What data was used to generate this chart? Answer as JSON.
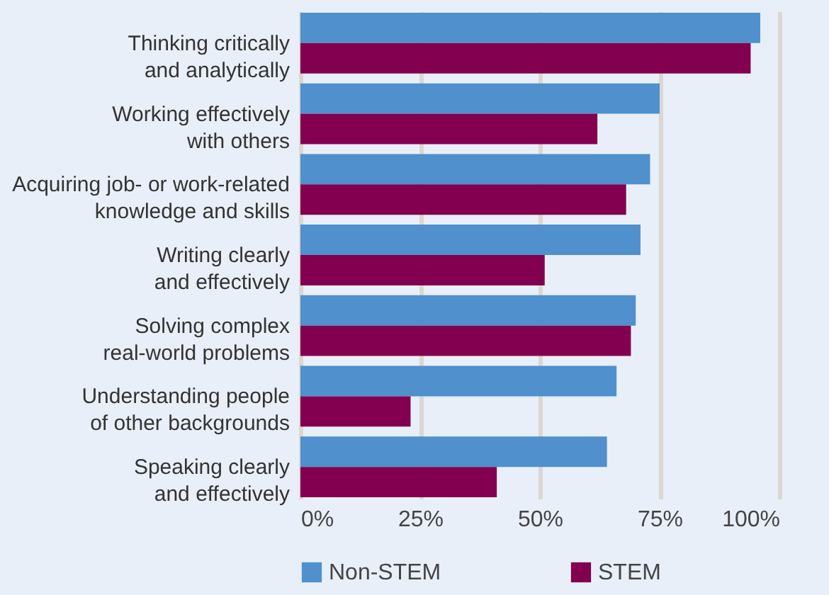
{
  "chart_data": {
    "type": "bar",
    "orientation": "horizontal",
    "categories": [
      "Thinking critically and analytically",
      "Working effectively with others",
      "Acquiring job- or work-related knowledge and skills",
      "Writing clearly and effectively",
      "Solving complex real-world problems",
      "Understanding people of other backgrounds",
      "Speaking clearly and effectively"
    ],
    "series": [
      {
        "name": "Non-STEM",
        "color": "#4f90cd",
        "values": [
          96,
          75,
          73,
          71,
          70,
          66,
          64
        ]
      },
      {
        "name": "STEM",
        "color": "#82004f",
        "values": [
          94,
          62,
          68,
          51,
          69,
          23,
          41
        ]
      }
    ],
    "xlim": [
      0,
      100
    ],
    "xticks": [
      {
        "value": 0,
        "label": "0%"
      },
      {
        "value": 25,
        "label": "25%"
      },
      {
        "value": 50,
        "label": "50%"
      },
      {
        "value": 75,
        "label": "75%"
      },
      {
        "value": 100,
        "label": "100%"
      }
    ],
    "grid": "x",
    "legend": "bottom"
  }
}
